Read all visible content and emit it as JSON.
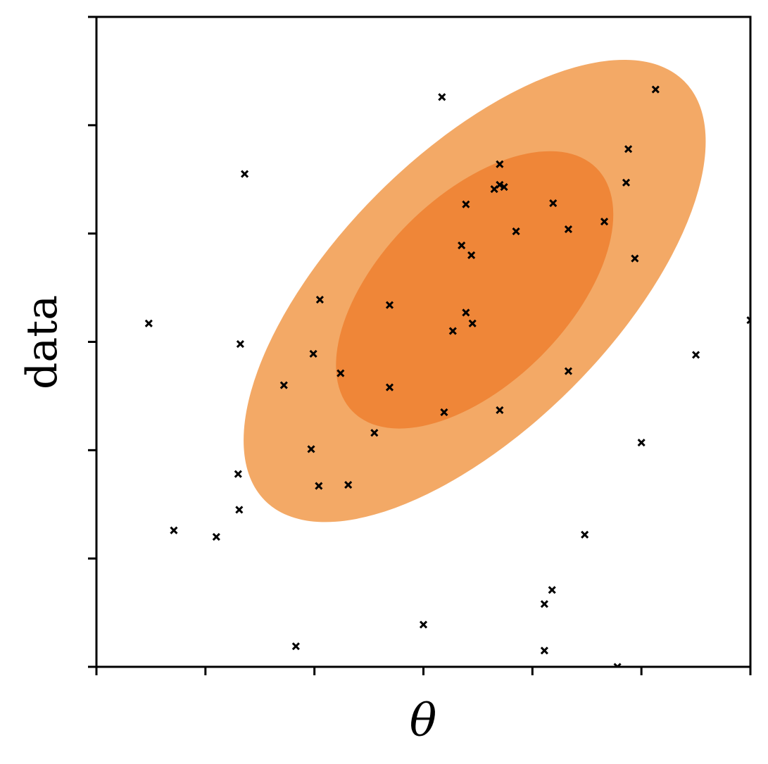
{
  "chart_data": {
    "type": "scatter",
    "xlabel": "θ",
    "ylabel": "data",
    "xlim": [
      0,
      6
    ],
    "ylim": [
      0,
      6
    ],
    "xticks": [
      0,
      1,
      2,
      3,
      4,
      5,
      6
    ],
    "yticks": [
      0,
      1,
      2,
      3,
      4,
      5,
      6
    ],
    "tick_labels_shown": false,
    "grid": false,
    "legend": "none",
    "colors": {
      "outer_region": "#f3a966",
      "inner_region": "#ef8638",
      "points": "#000000"
    },
    "confidence_regions": [
      {
        "name": "",
        "center": [
          3.47,
          3.47
        ],
        "semi_axes": [
          2.72,
          1.26
        ],
        "angle_deg": 45,
        "fill": "#f3a966"
      },
      {
        "name": "",
        "center": [
          3.47,
          3.48
        ],
        "semi_axes": [
          1.58,
          0.86
        ],
        "angle_deg": 45,
        "fill": "#ef8638"
      }
    ],
    "points": [
      {
        "x": 0.48,
        "y": 3.17
      },
      {
        "x": 1.32,
        "y": 2.98
      },
      {
        "x": 1.36,
        "y": 4.55
      },
      {
        "x": 0.71,
        "y": 1.26
      },
      {
        "x": 1.1,
        "y": 1.2
      },
      {
        "x": 1.31,
        "y": 1.45
      },
      {
        "x": 1.3,
        "y": 1.78
      },
      {
        "x": 1.72,
        "y": 2.6
      },
      {
        "x": 1.83,
        "y": 0.19
      },
      {
        "x": 1.97,
        "y": 2.01
      },
      {
        "x": 1.99,
        "y": 2.89
      },
      {
        "x": 2.05,
        "y": 3.39
      },
      {
        "x": 2.04,
        "y": 1.67
      },
      {
        "x": 2.31,
        "y": 1.68
      },
      {
        "x": 2.24,
        "y": 2.71
      },
      {
        "x": 2.55,
        "y": 2.16
      },
      {
        "x": 2.69,
        "y": 3.34
      },
      {
        "x": 2.69,
        "y": 2.58
      },
      {
        "x": 3.0,
        "y": 0.39
      },
      {
        "x": 3.17,
        "y": 5.26
      },
      {
        "x": 3.19,
        "y": 2.35
      },
      {
        "x": 3.27,
        "y": 3.1
      },
      {
        "x": 3.35,
        "y": 3.89
      },
      {
        "x": 3.39,
        "y": 4.27
      },
      {
        "x": 3.39,
        "y": 3.27
      },
      {
        "x": 3.44,
        "y": 3.8
      },
      {
        "x": 3.45,
        "y": 3.17
      },
      {
        "x": 3.65,
        "y": 4.41
      },
      {
        "x": 3.7,
        "y": 4.45
      },
      {
        "x": 3.7,
        "y": 4.64
      },
      {
        "x": 3.7,
        "y": 2.37
      },
      {
        "x": 3.74,
        "y": 4.43
      },
      {
        "x": 3.85,
        "y": 4.02
      },
      {
        "x": 4.11,
        "y": 0.58
      },
      {
        "x": 4.11,
        "y": 0.15
      },
      {
        "x": 4.18,
        "y": 0.71
      },
      {
        "x": 4.19,
        "y": 4.28
      },
      {
        "x": 4.33,
        "y": 4.04
      },
      {
        "x": 4.33,
        "y": 2.73
      },
      {
        "x": 4.48,
        "y": 1.22
      },
      {
        "x": 4.66,
        "y": 4.11
      },
      {
        "x": 4.78,
        "y": 0.0
      },
      {
        "x": 4.86,
        "y": 4.47
      },
      {
        "x": 4.88,
        "y": 4.78
      },
      {
        "x": 4.94,
        "y": 3.77
      },
      {
        "x": 5.0,
        "y": 2.07
      },
      {
        "x": 5.13,
        "y": 5.33
      },
      {
        "x": 5.5,
        "y": 2.88
      },
      {
        "x": 6.0,
        "y": 3.2
      }
    ]
  }
}
